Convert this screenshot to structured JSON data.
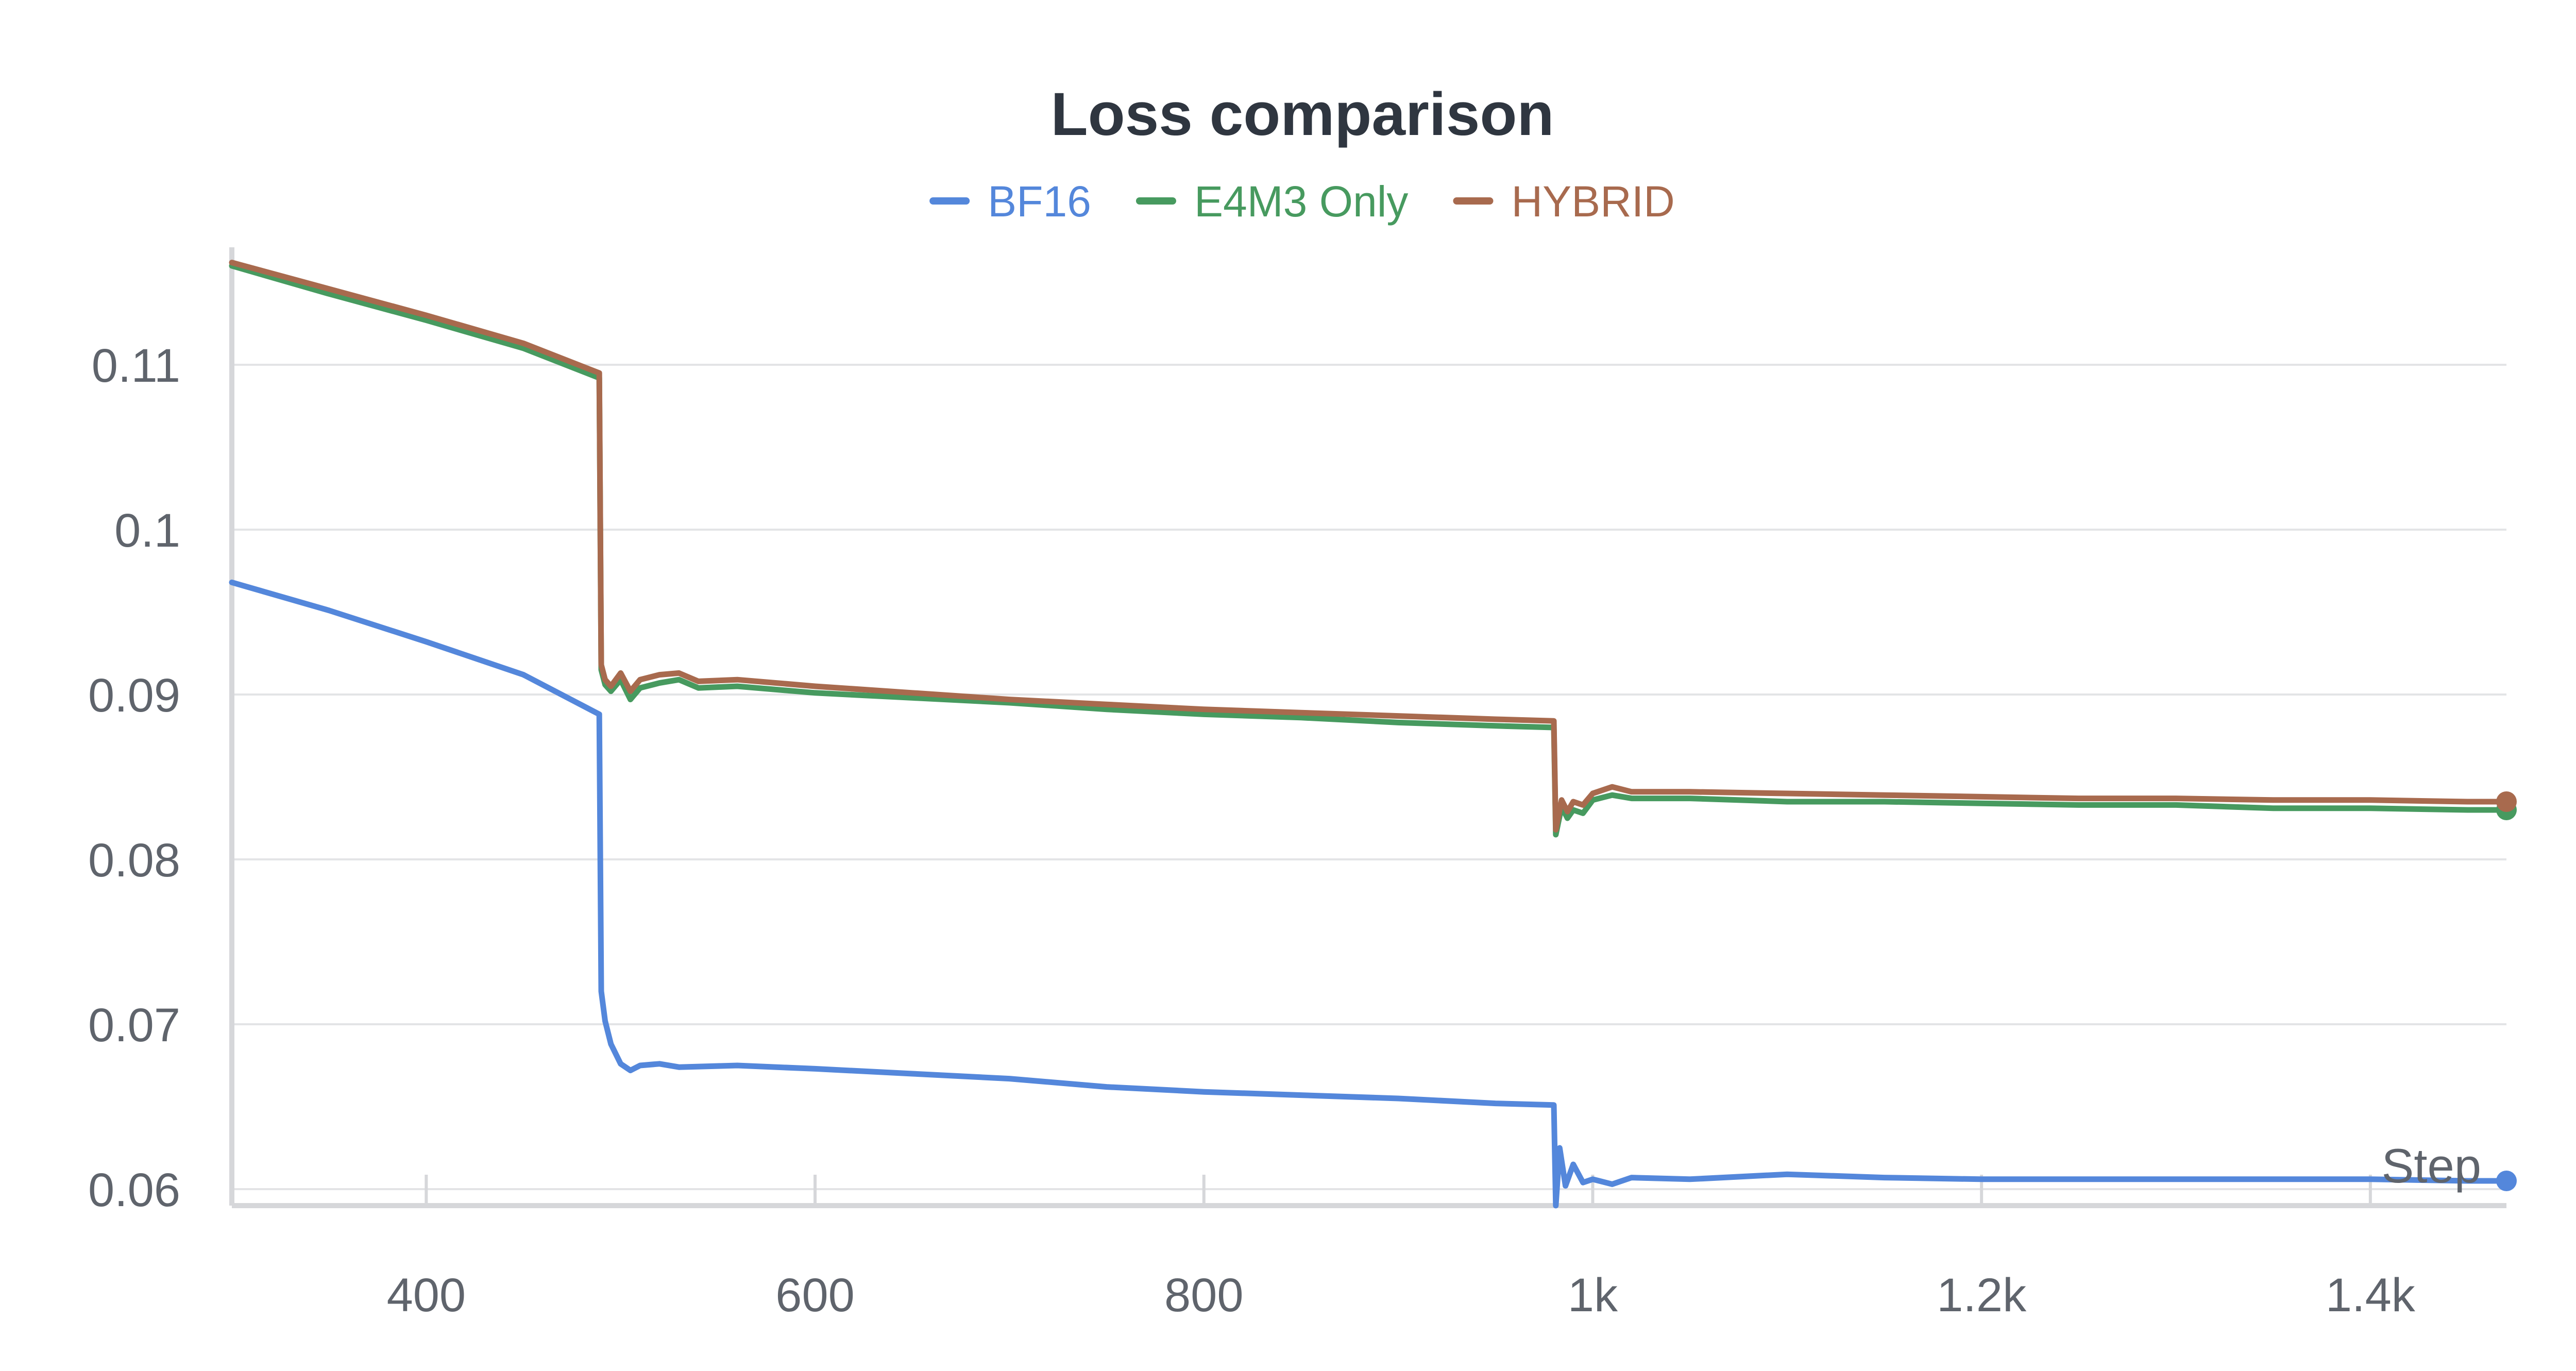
{
  "chart_data": {
    "type": "line",
    "title": "Loss comparison",
    "xlabel": "Step",
    "ylabel": "",
    "xlim": [
      300,
      1470
    ],
    "ylim": [
      0.059,
      0.1165
    ],
    "x_ticks": [
      400,
      600,
      800,
      1000,
      1200,
      1400
    ],
    "x_tick_labels": [
      "400",
      "600",
      "800",
      "1k",
      "1.2k",
      "1.4k"
    ],
    "y_ticks": [
      0.06,
      0.07,
      0.08,
      0.09,
      0.1,
      0.11
    ],
    "y_tick_labels": [
      "0.06",
      "0.07",
      "0.08",
      "0.09",
      "0.1",
      "0.11"
    ],
    "grid": true,
    "legend_position": "top-center",
    "series": [
      {
        "name": "BF16",
        "color": "#5487db",
        "points": [
          [
            300,
            0.0968
          ],
          [
            350,
            0.0951
          ],
          [
            400,
            0.0932
          ],
          [
            450,
            0.0912
          ],
          [
            489,
            0.0888
          ],
          [
            490,
            0.072
          ],
          [
            492,
            0.0702
          ],
          [
            495,
            0.0688
          ],
          [
            500,
            0.0676
          ],
          [
            505,
            0.0672
          ],
          [
            510,
            0.0675
          ],
          [
            520,
            0.0676
          ],
          [
            530,
            0.0674
          ],
          [
            560,
            0.0675
          ],
          [
            600,
            0.0673
          ],
          [
            650,
            0.067
          ],
          [
            700,
            0.0667
          ],
          [
            750,
            0.0662
          ],
          [
            800,
            0.0659
          ],
          [
            850,
            0.0657
          ],
          [
            900,
            0.0655
          ],
          [
            950,
            0.0652
          ],
          [
            980,
            0.0651
          ],
          [
            981,
            0.059
          ],
          [
            983,
            0.0625
          ],
          [
            986,
            0.0602
          ],
          [
            990,
            0.0615
          ],
          [
            995,
            0.0604
          ],
          [
            1000,
            0.0606
          ],
          [
            1010,
            0.0603
          ],
          [
            1020,
            0.0607
          ],
          [
            1050,
            0.0606
          ],
          [
            1100,
            0.0609
          ],
          [
            1150,
            0.0607
          ],
          [
            1200,
            0.0606
          ],
          [
            1250,
            0.0606
          ],
          [
            1300,
            0.0606
          ],
          [
            1350,
            0.0606
          ],
          [
            1400,
            0.0606
          ],
          [
            1450,
            0.0605
          ],
          [
            1470,
            0.0605
          ]
        ]
      },
      {
        "name": "E4M3 Only",
        "color": "#479a5f",
        "points": [
          [
            300,
            0.116
          ],
          [
            350,
            0.1143
          ],
          [
            400,
            0.1127
          ],
          [
            450,
            0.111
          ],
          [
            489,
            0.1092
          ],
          [
            490,
            0.0915
          ],
          [
            492,
            0.0906
          ],
          [
            495,
            0.0902
          ],
          [
            500,
            0.0909
          ],
          [
            505,
            0.0897
          ],
          [
            510,
            0.0904
          ],
          [
            520,
            0.0907
          ],
          [
            530,
            0.0909
          ],
          [
            540,
            0.0904
          ],
          [
            560,
            0.0905
          ],
          [
            600,
            0.0901
          ],
          [
            650,
            0.0898
          ],
          [
            700,
            0.0895
          ],
          [
            750,
            0.0891
          ],
          [
            800,
            0.0888
          ],
          [
            850,
            0.0886
          ],
          [
            900,
            0.0883
          ],
          [
            950,
            0.0881
          ],
          [
            980,
            0.088
          ],
          [
            981,
            0.0815
          ],
          [
            984,
            0.0832
          ],
          [
            987,
            0.0825
          ],
          [
            990,
            0.083
          ],
          [
            995,
            0.0828
          ],
          [
            1000,
            0.0836
          ],
          [
            1010,
            0.0839
          ],
          [
            1020,
            0.0837
          ],
          [
            1050,
            0.0837
          ],
          [
            1100,
            0.0835
          ],
          [
            1150,
            0.0835
          ],
          [
            1200,
            0.0834
          ],
          [
            1250,
            0.0833
          ],
          [
            1300,
            0.0833
          ],
          [
            1350,
            0.0831
          ],
          [
            1400,
            0.0831
          ],
          [
            1450,
            0.083
          ],
          [
            1470,
            0.083
          ]
        ]
      },
      {
        "name": "HYBRID",
        "color": "#a86a4e",
        "points": [
          [
            300,
            0.1162
          ],
          [
            350,
            0.1146
          ],
          [
            400,
            0.113
          ],
          [
            450,
            0.1113
          ],
          [
            489,
            0.1095
          ],
          [
            490,
            0.0918
          ],
          [
            492,
            0.0909
          ],
          [
            495,
            0.0905
          ],
          [
            500,
            0.0913
          ],
          [
            505,
            0.0902
          ],
          [
            510,
            0.0909
          ],
          [
            520,
            0.0912
          ],
          [
            530,
            0.0913
          ],
          [
            540,
            0.0908
          ],
          [
            560,
            0.0909
          ],
          [
            600,
            0.0905
          ],
          [
            650,
            0.0901
          ],
          [
            700,
            0.0897
          ],
          [
            750,
            0.0894
          ],
          [
            800,
            0.0891
          ],
          [
            850,
            0.0889
          ],
          [
            900,
            0.0887
          ],
          [
            950,
            0.0885
          ],
          [
            980,
            0.0884
          ],
          [
            981,
            0.0818
          ],
          [
            984,
            0.0836
          ],
          [
            987,
            0.0829
          ],
          [
            990,
            0.0835
          ],
          [
            995,
            0.0833
          ],
          [
            1000,
            0.084
          ],
          [
            1010,
            0.0844
          ],
          [
            1020,
            0.0841
          ],
          [
            1050,
            0.0841
          ],
          [
            1100,
            0.084
          ],
          [
            1150,
            0.0839
          ],
          [
            1200,
            0.0838
          ],
          [
            1250,
            0.0837
          ],
          [
            1300,
            0.0837
          ],
          [
            1350,
            0.0836
          ],
          [
            1400,
            0.0836
          ],
          [
            1450,
            0.0835
          ],
          [
            1470,
            0.0835
          ]
        ]
      }
    ]
  }
}
